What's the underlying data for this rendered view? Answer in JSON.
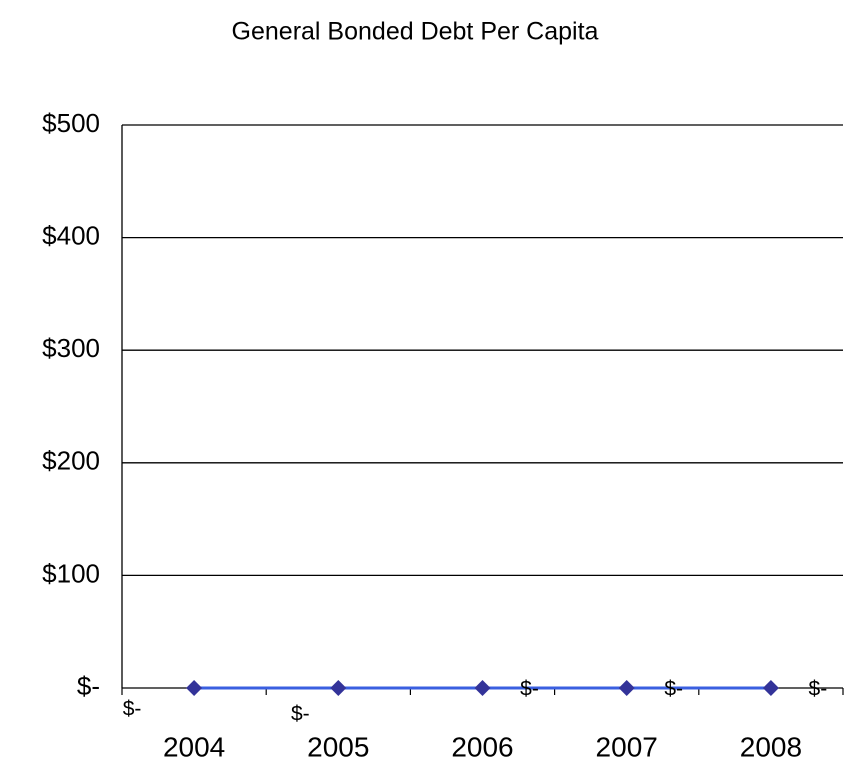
{
  "chart_data": {
    "type": "line",
    "title": "General Bonded Debt Per Capita",
    "categories": [
      "2004",
      "2005",
      "2006",
      "2007",
      "2008"
    ],
    "series": [
      {
        "name": "General Bonded Debt Per Capita",
        "color": "#3a5fe0",
        "marker_color": "#333399",
        "values": [
          0,
          0,
          0,
          0,
          0
        ],
        "value_labels": [
          "$-",
          "$-",
          "$-",
          "$-",
          "$-"
        ]
      }
    ],
    "ylim": [
      0,
      500
    ],
    "yticks": [
      {
        "value": 0,
        "label": "$-"
      },
      {
        "value": 100,
        "label": "$100"
      },
      {
        "value": 200,
        "label": "$200"
      },
      {
        "value": 300,
        "label": "$300"
      },
      {
        "value": 400,
        "label": "$400"
      },
      {
        "value": 500,
        "label": "$500"
      }
    ],
    "grid": true
  }
}
